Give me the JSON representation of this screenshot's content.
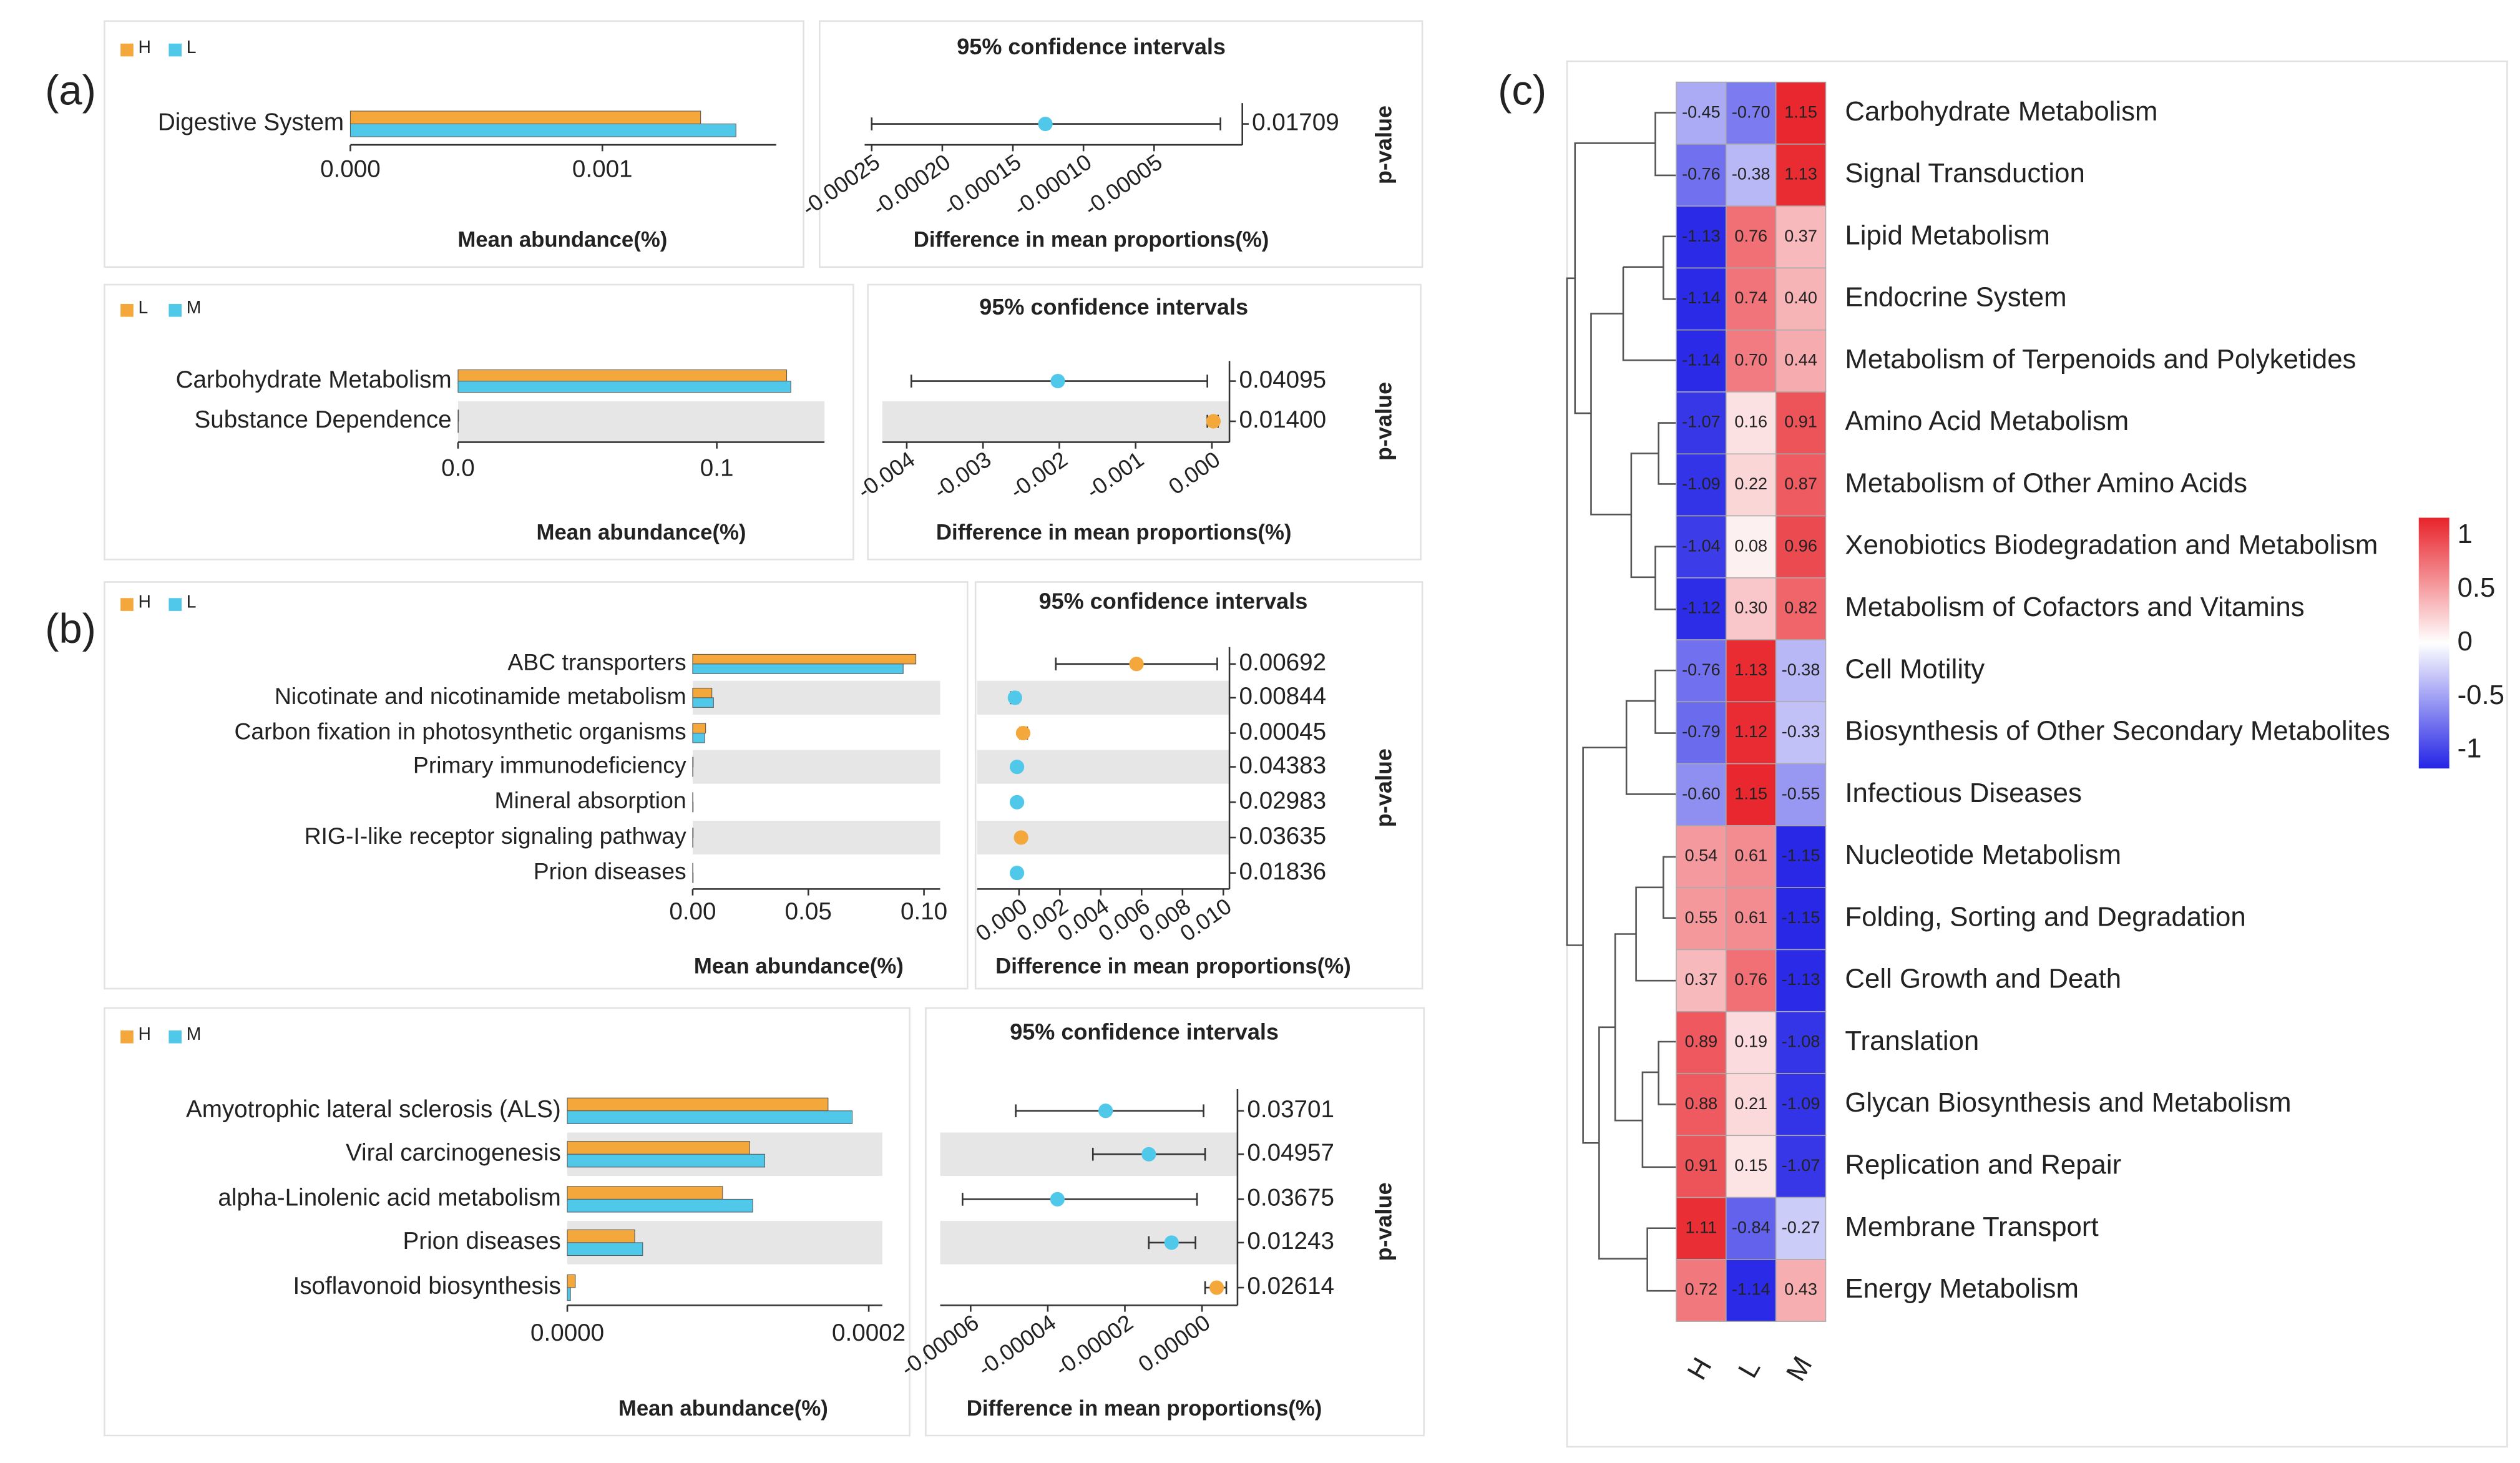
{
  "panel_labels": [
    "(a)",
    "(b)",
    "(c)"
  ],
  "chart_data": [
    {
      "type": "extended_error_bar",
      "series": [
        {
          "name": "H",
          "color": "#f4a73a",
          "values": [
            0.00139
          ]
        },
        {
          "name": "L",
          "color": "#4fc8ea",
          "values": [
            0.00153
          ]
        }
      ],
      "categories": [
        "Digestive System"
      ],
      "xlabel": "Mean abundance(%)",
      "xlim": [
        0,
        0.00169
      ],
      "xticks": [
        {
          "value": 0,
          "label": "0.000"
        },
        0.001
      ],
      "ci_title": "95% confidence intervals",
      "ci_xlabel": "Difference in mean proportions(%)",
      "diff": [
        -0.000127
      ],
      "lower": [
        -0.00025
      ],
      "upper": [
        -3e-06
      ],
      "ci_xlim": [
        -0.000255,
        1.25e-05
      ],
      "ci_xticks": [
        -0.00025,
        {
          "value": -0.0002,
          "label": "-0.00020"
        },
        -0.00015,
        {
          "value": -0.0001,
          "label": "-0.00010"
        },
        -5e-05
      ],
      "p_label": "p-value",
      "p_values": [
        0.01709
      ]
    },
    {
      "type": "extended_error_bar",
      "series": [
        {
          "name": "L",
          "color": "#f4a73a",
          "values": [
            0.127,
            0.0002
          ]
        },
        {
          "name": "M",
          "color": "#4fc8ea",
          "values": [
            0.1286,
            0.0001
          ]
        }
      ],
      "categories": [
        "Carbohydrate Metabolism",
        "Substance Dependence"
      ],
      "xlabel": "Mean abundance(%)",
      "xlim": [
        0,
        0.1416
      ],
      "xticks": [
        {
          "value": 0,
          "label": "0.0"
        },
        0.1
      ],
      "ci_title": "95% confidence intervals",
      "ci_xlabel": "Difference in mean proportions(%)",
      "diff": [
        -0.00202,
        2e-05
      ],
      "lower": [
        -0.00394,
        -6e-05
      ],
      "upper": [
        -6e-05,
        8e-05
      ],
      "ci_xlim": [
        -0.00432,
        0.00023
      ],
      "ci_xticks": [
        -0.004,
        -0.003,
        -0.002,
        -0.001,
        {
          "value": 0,
          "label": "0.000"
        }
      ],
      "p_label": "p-value",
      "p_values": [
        0.04095,
        0.014
      ],
      "p_value_labels": [
        "0.04095",
        "0.01400"
      ]
    },
    {
      "type": "extended_error_bar",
      "series": [
        {
          "name": "H",
          "color": "#f4a73a",
          "values": [
            0.0965,
            0.0083,
            0.0056,
            0.0002,
            0.0001,
            0.0002,
            0.0001
          ]
        },
        {
          "name": "L",
          "color": "#4fc8ea",
          "values": [
            0.091,
            0.009,
            0.0052,
            0.0001,
            0.0002,
            0.0001,
            0.0002
          ]
        }
      ],
      "categories": [
        "ABC transporters",
        "Nicotinate and nicotinamide metabolism",
        "Carbon fixation in photosynthetic organisms",
        "Primary immunodeficiency",
        "Mineral absorption",
        "RIG-I-like receptor signaling pathway",
        "Prion diseases"
      ],
      "xlabel": "Mean abundance(%)",
      "xlim": [
        0,
        0.107
      ],
      "xticks": [
        {
          "value": 0,
          "label": "0.00"
        },
        0.05,
        {
          "value": 0.1,
          "label": "0.10"
        }
      ],
      "ci_title": "95% confidence intervals",
      "ci_xlabel": "Difference in mean proportions(%)",
      "diff": [
        0.00575,
        -0.0002,
        0.0002,
        -0.0001,
        -0.0001,
        0.0001,
        -0.0001
      ],
      "lower": [
        0.0018,
        -0.0004,
        5e-05,
        -0.0002,
        -0.0002,
        2e-05,
        -0.0002
      ],
      "upper": [
        0.0097,
        -5e-05,
        0.0004,
        -2e-05,
        -2e-05,
        0.0002,
        -2e-05
      ],
      "ci_xlim": [
        -0.00205,
        0.0103
      ],
      "ci_xticks": [
        {
          "value": 0,
          "label": "0.000"
        },
        0.002,
        0.004,
        0.006,
        0.008,
        {
          "value": 0.01,
          "label": "0.010"
        }
      ],
      "p_label": "p-value",
      "p_values": [
        0.00692,
        0.00844,
        0.00045,
        0.04383,
        0.02983,
        0.03635,
        0.01836
      ]
    },
    {
      "type": "extended_error_bar",
      "series": [
        {
          "name": "H",
          "color": "#f4a73a",
          "values": [
            0.000173,
            0.000121,
            0.000103,
            4.47e-05,
            5.3e-06
          ]
        },
        {
          "name": "M",
          "color": "#4fc8ea",
          "values": [
            0.000189,
            0.000131,
            0.000123,
            5e-05,
            2.1e-06
          ]
        }
      ],
      "categories": [
        "Amyotrophic lateral sclerosis (ALS)",
        "Viral carcinogenesis",
        "alpha-Linolenic acid metabolism",
        "Prion diseases",
        "Isoflavonoid biosynthesis"
      ],
      "xlabel": "Mean abundance(%)",
      "xlim": [
        0,
        0.000209
      ],
      "xticks": [
        {
          "value": 0,
          "label": "0.0000"
        },
        0.0002
      ],
      "ci_title": "95% confidence intervals",
      "ci_xlabel": "Difference in mean proportions(%)",
      "diff": [
        -2.5e-05,
        -1.38e-05,
        -3.75e-05,
        -7.9e-06,
        3.8e-06
      ],
      "lower": [
        -4.83e-05,
        -2.83e-05,
        -6.21e-05,
        -1.38e-05,
        8e-07
      ],
      "upper": [
        4e-07,
        8e-07,
        -1.3e-06,
        -1.7e-06,
        6.3e-06
      ],
      "ci_xlim": [
        -6.79e-05,
        9.2e-06
      ],
      "ci_xticks": [
        -6e-05,
        -4e-05,
        -2e-05,
        {
          "value": 0,
          "label": "0.00000"
        }
      ],
      "p_label": "p-value",
      "p_values": [
        0.03701,
        0.04957,
        0.03675,
        0.01243,
        0.02614
      ]
    },
    {
      "type": "heatmap",
      "columns": [
        "H",
        "L",
        "M"
      ],
      "rows": [
        "Carbohydrate Metabolism",
        "Signal Transduction",
        "Lipid Metabolism",
        "Endocrine System",
        "Metabolism of Terpenoids and Polyketides",
        "Amino Acid Metabolism",
        "Metabolism of Other Amino Acids",
        "Xenobiotics Biodegradation and Metabolism",
        "Metabolism of Cofactors and Vitamins",
        "Cell Motility",
        "Biosynthesis of Other Secondary Metabolites",
        "Infectious Diseases",
        "Nucleotide Metabolism",
        "Folding, Sorting and Degradation",
        "Cell Growth and Death",
        "Translation",
        "Glycan Biosynthesis and Metabolism",
        "Replication and Repair",
        "Membrane Transport",
        "Energy Metabolism"
      ],
      "values": [
        [
          -0.45,
          -0.7,
          1.15
        ],
        [
          -0.76,
          -0.38,
          1.13
        ],
        [
          -1.13,
          0.76,
          0.37
        ],
        [
          -1.14,
          0.74,
          0.4
        ],
        [
          -1.14,
          0.7,
          0.44
        ],
        [
          -1.07,
          0.16,
          0.91
        ],
        [
          -1.09,
          0.22,
          0.87
        ],
        [
          -1.04,
          0.08,
          0.96
        ],
        [
          -1.12,
          0.3,
          0.82
        ],
        [
          -0.76,
          1.13,
          -0.38
        ],
        [
          -0.79,
          1.12,
          -0.33
        ],
        [
          -0.6,
          1.15,
          -0.55
        ],
        [
          0.54,
          0.61,
          -1.15
        ],
        [
          0.55,
          0.61,
          -1.15
        ],
        [
          0.37,
          0.76,
          -1.13
        ],
        [
          0.89,
          0.19,
          -1.08
        ],
        [
          0.88,
          0.21,
          -1.09
        ],
        [
          0.91,
          0.15,
          -1.07
        ],
        [
          1.11,
          -0.84,
          -0.27
        ],
        [
          0.72,
          -1.14,
          0.43
        ]
      ],
      "value_labels": [
        [
          "-0.45",
          "-0.70",
          "1.15"
        ],
        [
          "-0.76",
          "-0.38",
          "1.13"
        ],
        [
          "-1.13",
          "0.76",
          "0.37"
        ],
        [
          "-1.14",
          "0.74",
          "0.40"
        ],
        [
          "-1.14",
          "0.70",
          "0.44"
        ],
        [
          "-1.07",
          "0.16",
          "0.91"
        ],
        [
          "-1.09",
          "0.22",
          "0.87"
        ],
        [
          "-1.04",
          "0.08",
          "0.96"
        ],
        [
          "-1.12",
          "0.30",
          "0.82"
        ],
        [
          "-0.76",
          "1.13",
          "-0.38"
        ],
        [
          "-0.79",
          "1.12",
          "-0.33"
        ],
        [
          "-0.60",
          "1.15",
          "-0.55"
        ],
        [
          "0.54",
          "0.61",
          "-1.15"
        ],
        [
          "0.55",
          "0.61",
          "-1.15"
        ],
        [
          "0.37",
          "0.76",
          "-1.13"
        ],
        [
          "0.89",
          "0.19",
          "-1.08"
        ],
        [
          "0.88",
          "0.21",
          "-1.09"
        ],
        [
          "0.91",
          "0.15",
          "-1.07"
        ],
        [
          "1.11",
          "-0.84",
          "-0.27"
        ],
        [
          "0.72",
          "-1.14",
          "0.43"
        ]
      ],
      "zlim": [
        -1.17,
        1.17
      ],
      "colorbar_ticks": [
        1,
        0.5,
        0,
        -0.5,
        -1
      ],
      "colors": {
        "low": "#2424e6",
        "mid": "#ffffff",
        "high": "#e8232b"
      }
    }
  ]
}
